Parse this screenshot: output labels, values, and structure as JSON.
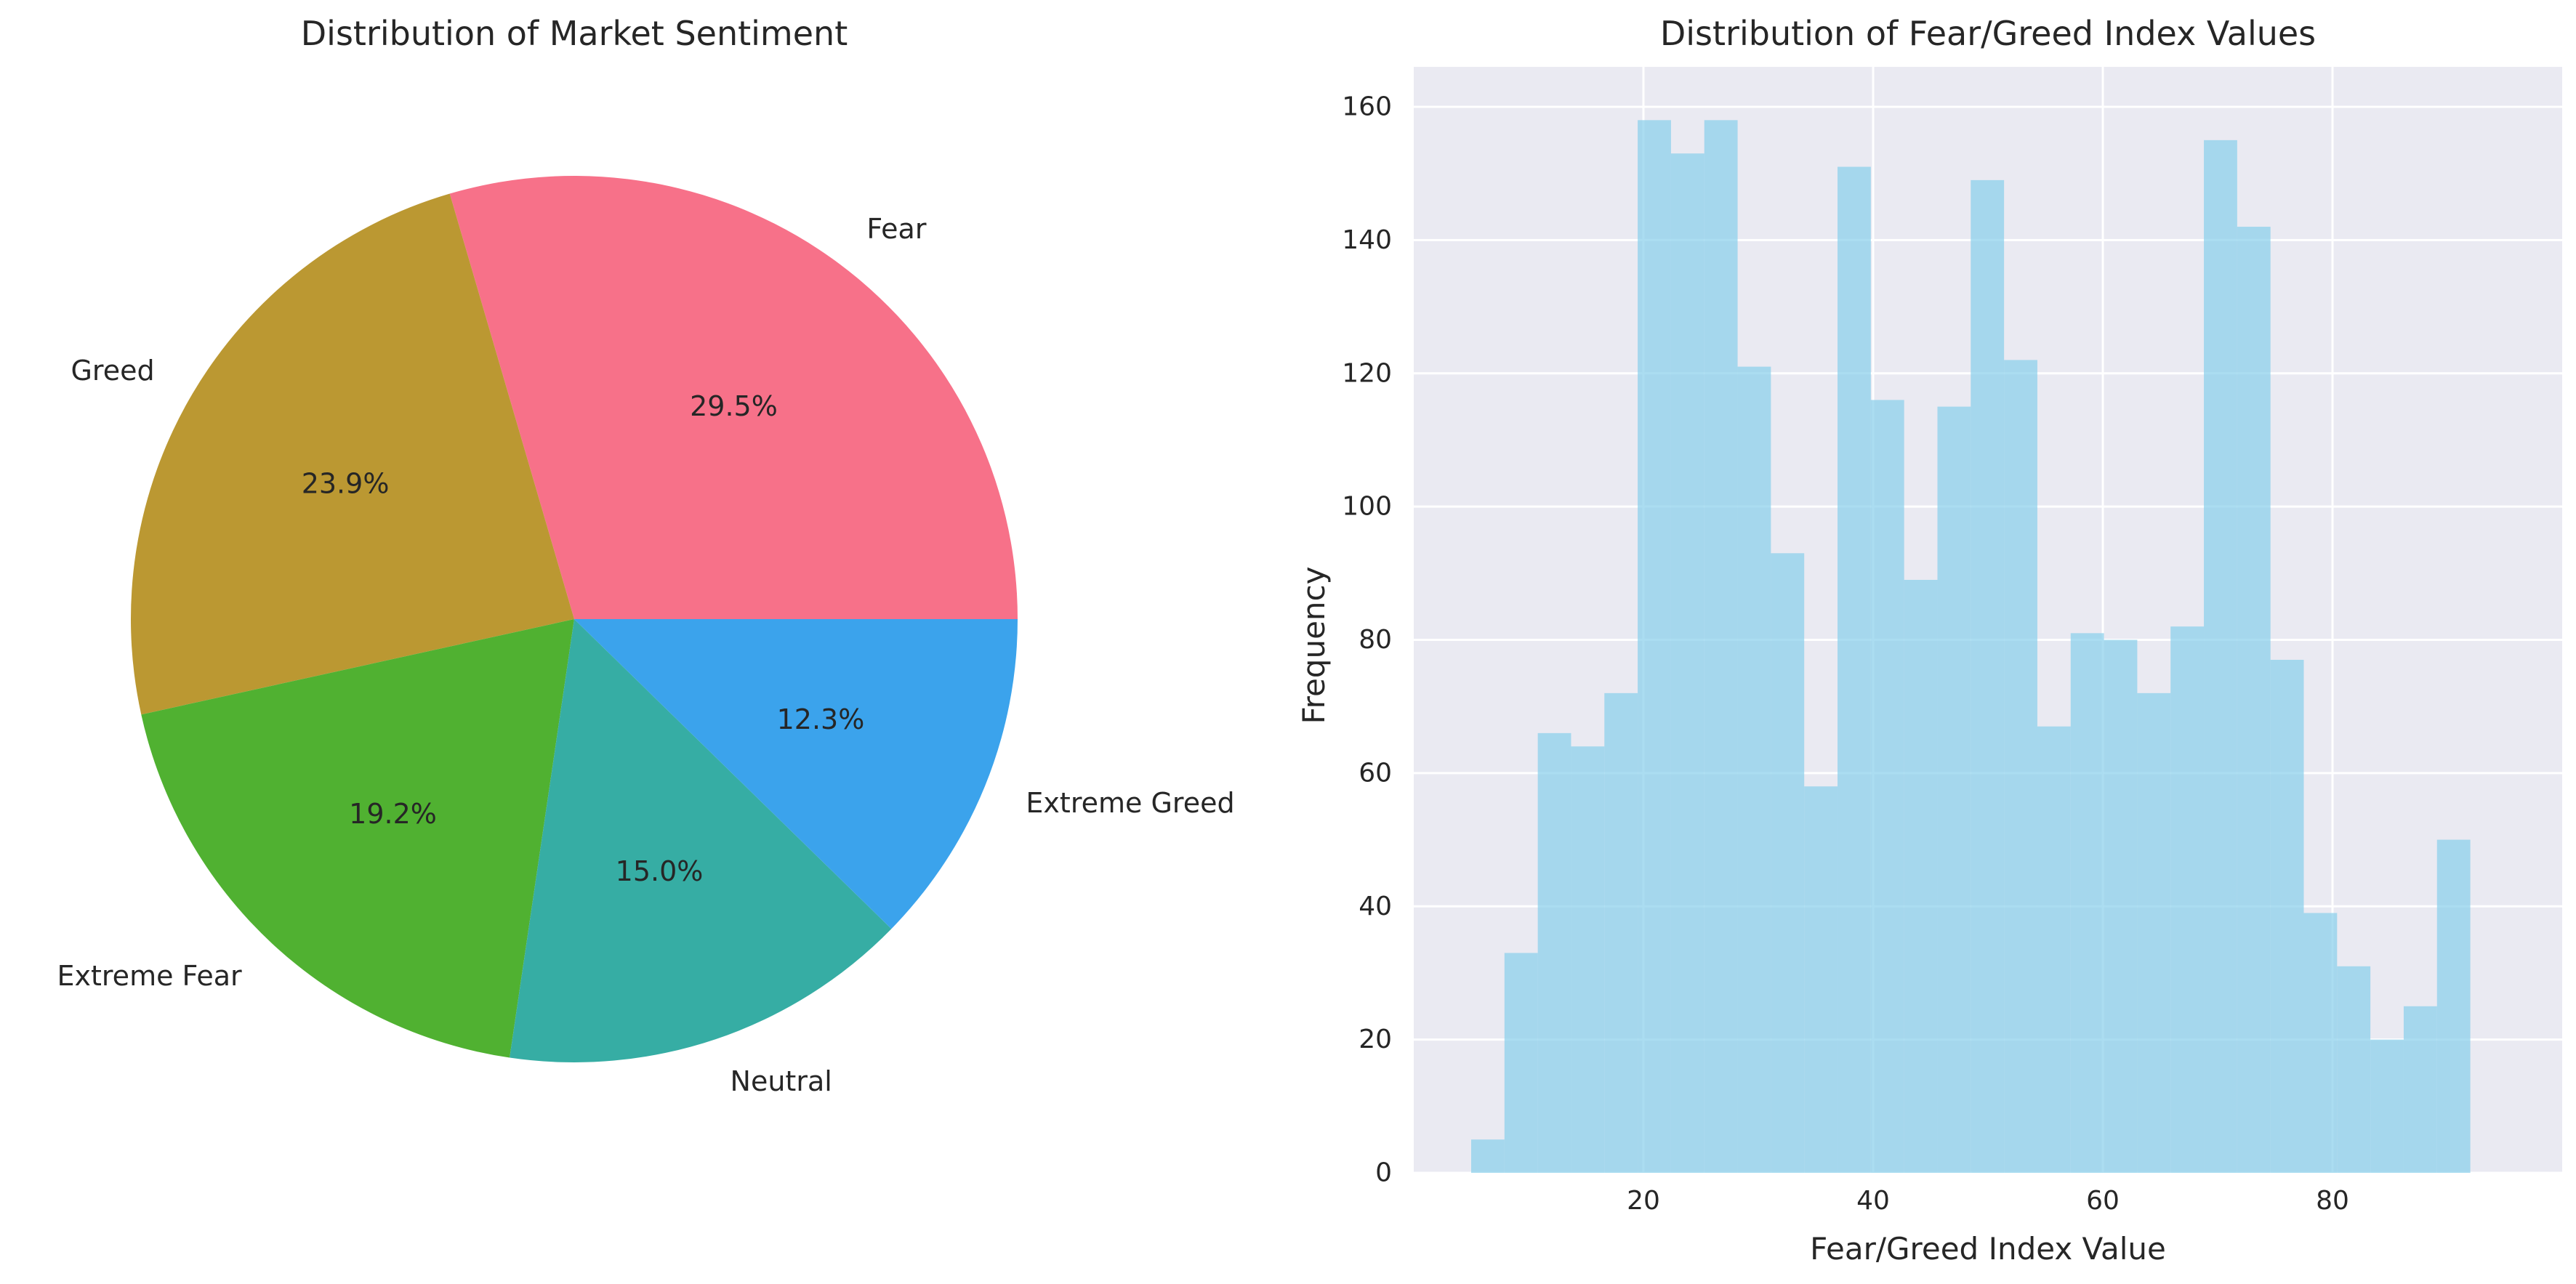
{
  "chart_data": [
    {
      "type": "pie",
      "title": "Distribution of Market Sentiment",
      "slices": [
        {
          "label": "Fear",
          "value": 29.5,
          "pct_label": "29.5%",
          "color": "#f77189"
        },
        {
          "label": "Greed",
          "value": 23.9,
          "pct_label": "23.9%",
          "color": "#bb9832"
        },
        {
          "label": "Extreme Fear",
          "value": 19.2,
          "pct_label": "19.2%",
          "color": "#50b131"
        },
        {
          "label": "Neutral",
          "value": 15.0,
          "pct_label": "15.0%",
          "color": "#36ada4"
        },
        {
          "label": "Extreme Greed",
          "value": 12.3,
          "pct_label": "12.3%",
          "color": "#3ba3ec"
        }
      ],
      "start_angle_deg": 0,
      "direction": "counterclockwise"
    },
    {
      "type": "bar",
      "subtype": "histogram",
      "title": "Distribution of Fear/Greed Index Values",
      "xlabel": "Fear/Greed Index Value",
      "ylabel": "Frequency",
      "bar_color": "#87ceeb",
      "bar_opacity": 0.7,
      "bin_start": 5,
      "bin_end": 95,
      "bin_width": 2.9,
      "values": [
        5,
        33,
        66,
        64,
        72,
        158,
        153,
        158,
        121,
        93,
        58,
        151,
        116,
        89,
        115,
        149,
        122,
        67,
        81,
        80,
        72,
        82,
        155,
        142,
        77,
        39,
        31,
        20,
        25,
        50
      ],
      "xlim": [
        0,
        100
      ],
      "ylim": [
        0,
        166
      ],
      "xticks": [
        20,
        40,
        60,
        80
      ],
      "yticks": [
        0,
        20,
        40,
        60,
        80,
        100,
        120,
        140,
        160
      ],
      "grid": true,
      "background": "#eaeaf2"
    }
  ]
}
